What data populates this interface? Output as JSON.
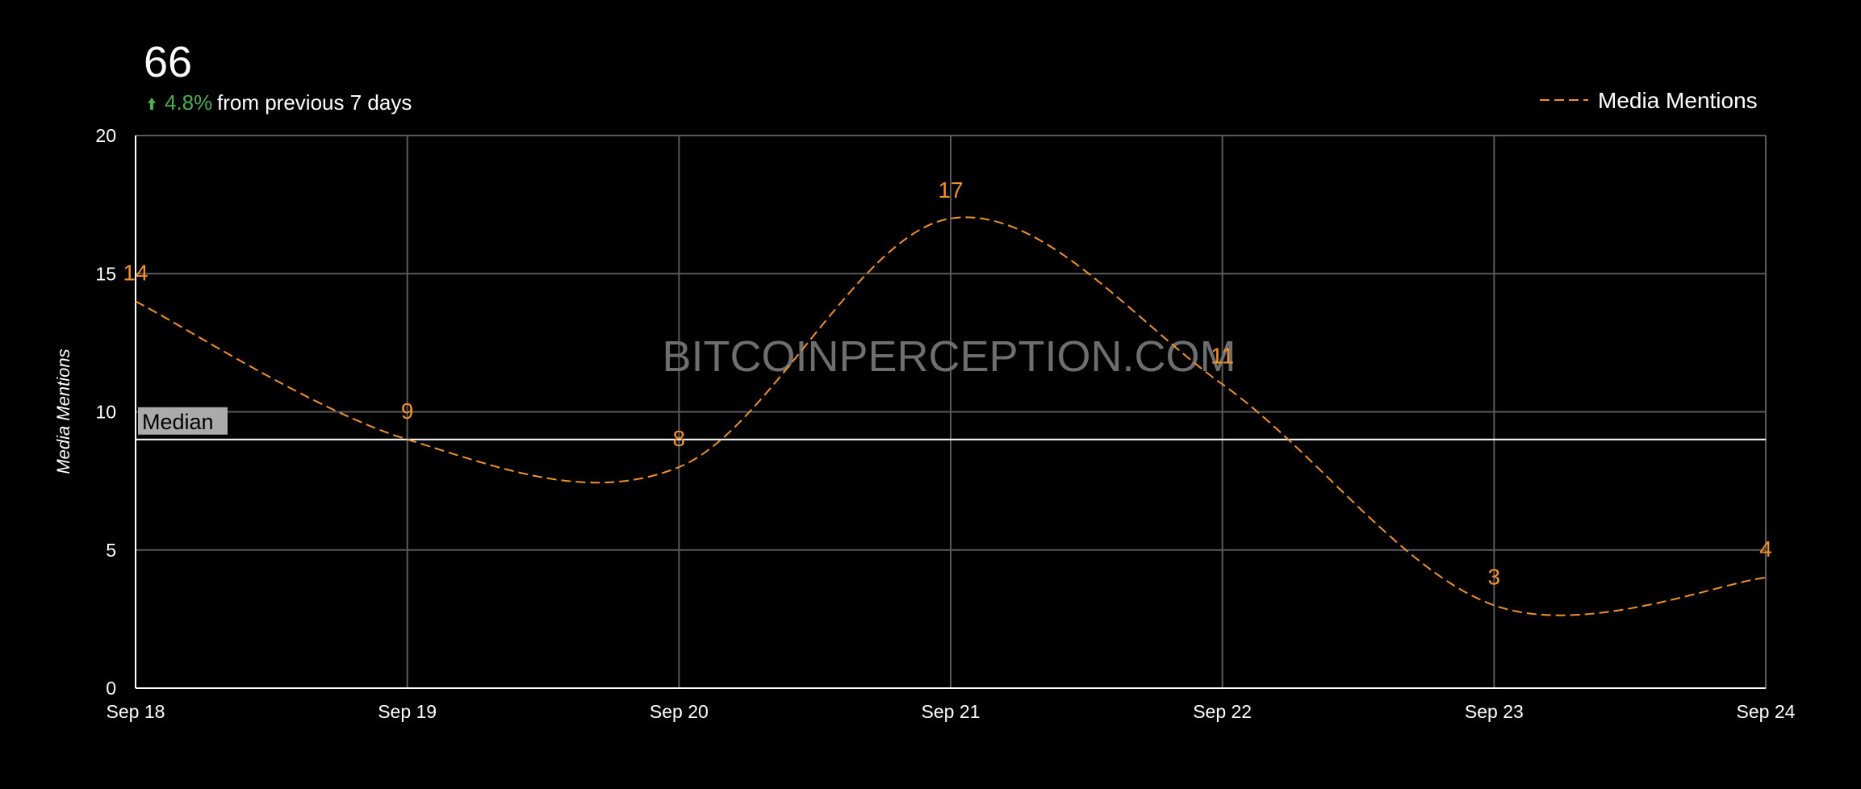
{
  "chart_data": {
    "type": "line",
    "total": 66,
    "change": "4.8%",
    "change_text": "from previous 7 days",
    "y_label": "Media Mentions",
    "watermark": "BITCOINPERCEPTION.COM",
    "categories": [
      "Sep 18",
      "Sep 19",
      "Sep 20",
      "Sep 21",
      "Sep 22",
      "Sep 23",
      "Sep 24"
    ],
    "series": [
      {
        "name": "Media Mentions",
        "color": "#f0922b",
        "values": [
          14,
          9,
          8,
          17,
          11,
          3,
          4
        ]
      }
    ],
    "median": {
      "label": "Median",
      "value": 9
    },
    "ylim": [
      0,
      20
    ],
    "yticks": [
      0,
      5,
      10,
      15,
      20
    ],
    "grid": true,
    "legend": "top-right"
  }
}
